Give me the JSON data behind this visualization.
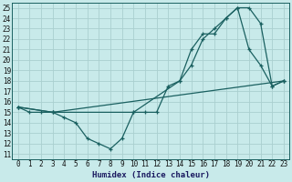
{
  "xlabel": "Humidex (Indice chaleur)",
  "xlim": [
    -0.5,
    23.5
  ],
  "ylim": [
    10.5,
    25.5
  ],
  "xticks": [
    0,
    1,
    2,
    3,
    4,
    5,
    6,
    7,
    8,
    9,
    10,
    11,
    12,
    13,
    14,
    15,
    16,
    17,
    18,
    19,
    20,
    21,
    22,
    23
  ],
  "yticks": [
    11,
    12,
    13,
    14,
    15,
    16,
    17,
    18,
    19,
    20,
    21,
    22,
    23,
    24,
    25
  ],
  "bg_color": "#c8eaea",
  "grid_color": "#aacfcf",
  "line_color": "#1a6060",
  "line1_x": [
    0,
    1,
    2,
    3,
    4,
    5,
    6,
    7,
    8,
    9,
    10,
    11,
    12,
    13,
    14,
    15,
    16,
    17,
    18,
    19,
    20,
    21,
    22,
    23
  ],
  "line1_y": [
    15.5,
    15,
    15,
    15,
    14.5,
    14,
    12.5,
    12,
    11.5,
    12.5,
    15,
    15,
    15,
    17.5,
    18,
    21,
    22.5,
    22.5,
    24,
    25,
    21,
    19.5,
    17.5,
    18
  ],
  "line2_x": [
    0,
    3,
    10,
    14,
    15,
    16,
    17,
    18,
    19,
    20,
    21,
    22,
    23
  ],
  "line2_y": [
    15.5,
    15,
    15,
    18,
    19.5,
    22,
    23,
    24,
    25,
    25,
    23.5,
    17.5,
    18
  ],
  "line3_x": [
    0,
    3,
    23
  ],
  "line3_y": [
    15.5,
    15,
    18
  ]
}
